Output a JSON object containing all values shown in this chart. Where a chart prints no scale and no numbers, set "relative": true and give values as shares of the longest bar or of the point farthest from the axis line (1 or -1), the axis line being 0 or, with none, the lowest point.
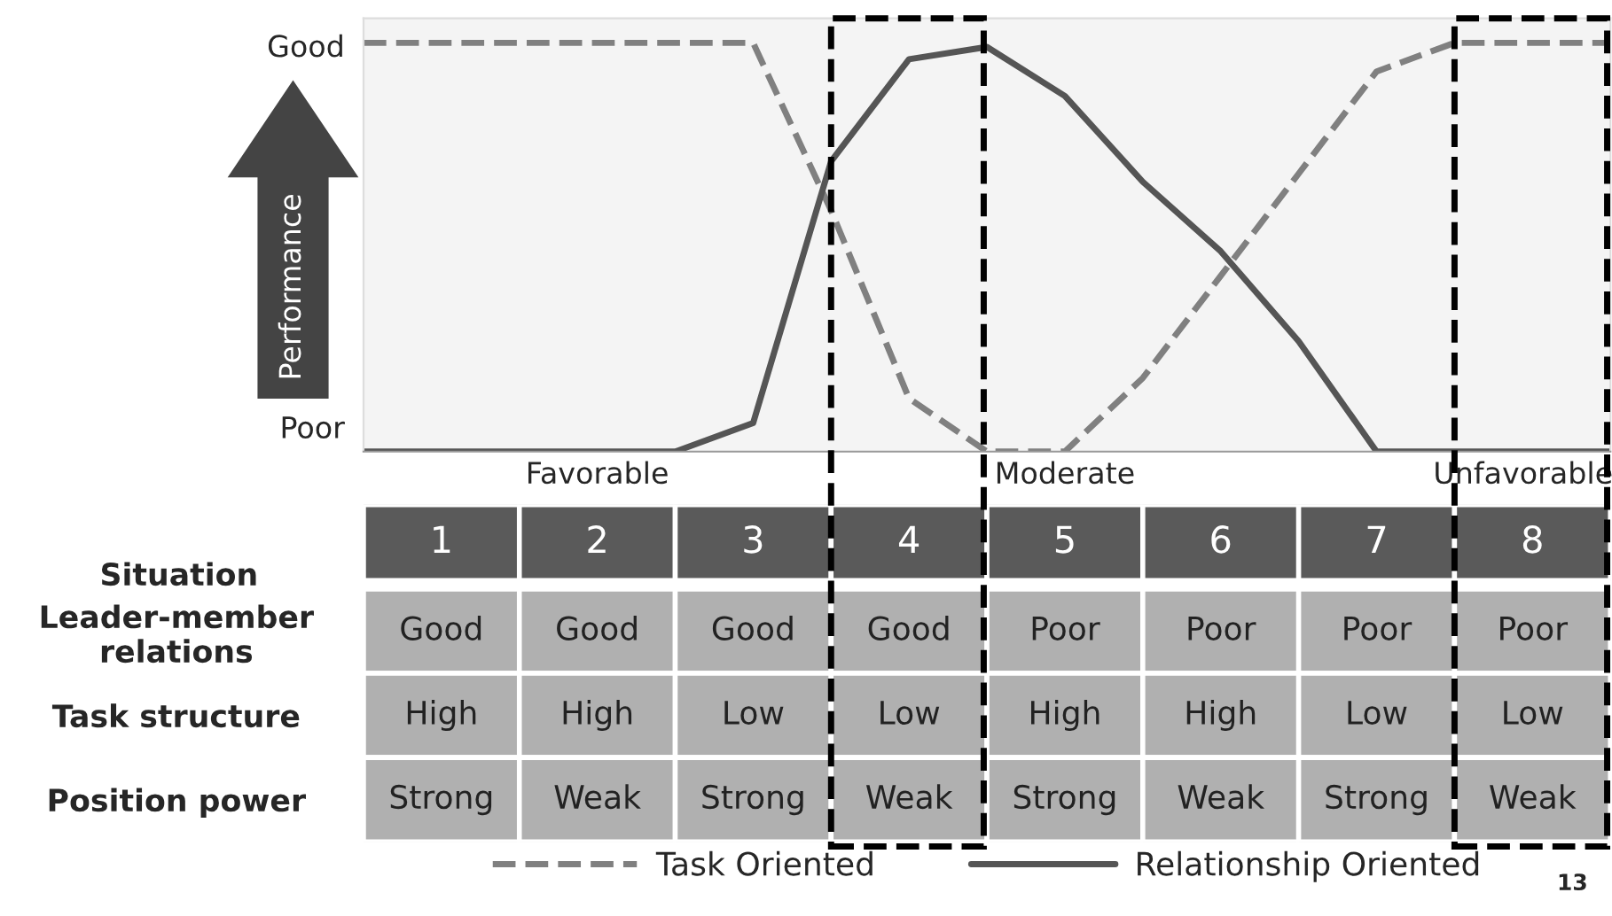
{
  "chart_data": [
    {
      "type": "line",
      "ylabel": "Performance",
      "relative": true,
      "categories": [
        null,
        null,
        null,
        null,
        null,
        null,
        null,
        null,
        null,
        null,
        null,
        null,
        null,
        null,
        null,
        null,
        null
      ],
      "grid": false,
      "legend": "bottom",
      "series": [
        {
          "name": "Task Oriented",
          "color": "#808080",
          "line_style": "dashed",
          "values": [
            1,
            1,
            1,
            1,
            1,
            1,
            0.59,
            0.13,
            0,
            0,
            0.18,
            0.43,
            0.68,
            0.93,
            1,
            1,
            1
          ]
        },
        {
          "name": "Relationship Oriented",
          "color": "#555555",
          "line_style": "solid",
          "values": [
            0,
            0,
            0,
            0,
            0,
            0.07,
            0.71,
            0.96,
            0.99,
            0.87,
            0.66,
            0.49,
            0.27,
            0,
            0,
            0,
            0
          ]
        }
      ],
      "annotations": [
        "Good",
        "Poor",
        "Favorable",
        "Moderate",
        "Unfavorable",
        "13"
      ]
    },
    {
      "type": "heatmap",
      "xlabel": "Situation",
      "categories": [
        "1",
        "2",
        "3",
        "4",
        "5",
        "6",
        "7",
        "8"
      ],
      "y_categories": [
        "Leader-member\nrelations",
        "Task structure",
        "Position power"
      ],
      "cells": [
        [
          null,
          null,
          null,
          null,
          null,
          null,
          null,
          null
        ],
        [
          null,
          null,
          null,
          null,
          null,
          null,
          null,
          null
        ],
        [
          null,
          null,
          null,
          null,
          null,
          null,
          null,
          null
        ]
      ],
      "cell_labels": [
        [
          "Good",
          "Good",
          "Good",
          "Good",
          "Poor",
          "Poor",
          "Poor",
          "Poor"
        ],
        [
          "High",
          "High",
          "Low",
          "Low",
          "High",
          "High",
          "Low",
          "Low"
        ],
        [
          "Strong",
          "Weak",
          "Strong",
          "Weak",
          "Strong",
          "Weak",
          "Strong",
          "Weak"
        ]
      ]
    }
  ]
}
